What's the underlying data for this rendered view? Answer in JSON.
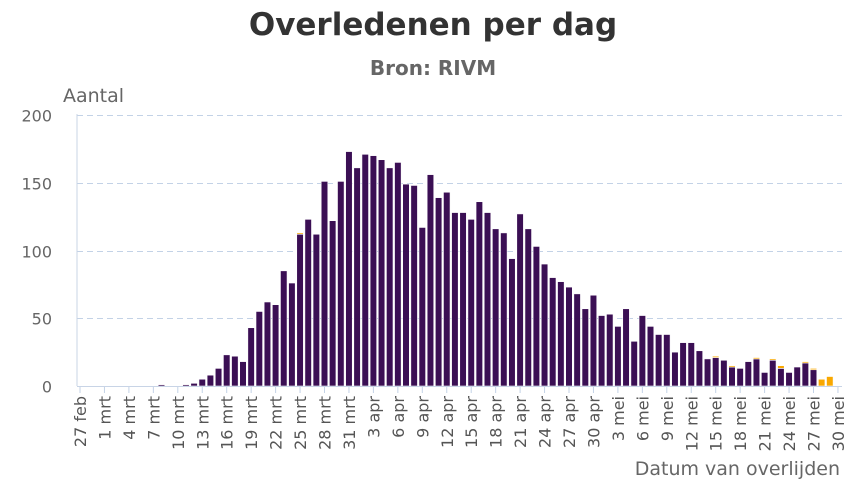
{
  "chart_data": {
    "type": "bar",
    "stacked": true,
    "title": "Overledenen per dag",
    "subtitle": "Bron: RIVM",
    "ylabel": "Aantal",
    "xlabel": "Datum van overlijden",
    "ylim": [
      0,
      200
    ],
    "yticks": [
      0,
      50,
      100,
      150,
      200
    ],
    "grid": true,
    "legend": "none",
    "xticks": [
      "27 feb",
      "1 mrt",
      "4 mrt",
      "7 mrt",
      "10 mrt",
      "13 mrt",
      "16 mrt",
      "19 mrt",
      "22 mrt",
      "25 mrt",
      "28 mrt",
      "31 mrt",
      "3 apr",
      "6 apr",
      "9 apr",
      "12 apr",
      "15 apr",
      "18 apr",
      "21 apr",
      "24 apr",
      "27 apr",
      "30 apr",
      "3 mei",
      "6 mei",
      "9 mei",
      "12 mei",
      "15 mei",
      "18 mei",
      "21 mei",
      "24 mei",
      "27 mei",
      "30 mei"
    ],
    "categories": [
      "27 feb",
      "28 feb",
      "29 feb",
      "1 mrt",
      "2 mrt",
      "3 mrt",
      "4 mrt",
      "5 mrt",
      "6 mrt",
      "7 mrt",
      "8 mrt",
      "9 mrt",
      "10 mrt",
      "11 mrt",
      "12 mrt",
      "13 mrt",
      "14 mrt",
      "15 mrt",
      "16 mrt",
      "17 mrt",
      "18 mrt",
      "19 mrt",
      "20 mrt",
      "21 mrt",
      "22 mrt",
      "23 mrt",
      "24 mrt",
      "25 mrt",
      "26 mrt",
      "27 mrt",
      "28 mrt",
      "29 mrt",
      "30 mrt",
      "31 mrt",
      "1 apr",
      "2 apr",
      "3 apr",
      "4 apr",
      "5 apr",
      "6 apr",
      "7 apr",
      "8 apr",
      "9 apr",
      "10 apr",
      "11 apr",
      "12 apr",
      "13 apr",
      "14 apr",
      "15 apr",
      "16 apr",
      "17 apr",
      "18 apr",
      "19 apr",
      "20 apr",
      "21 apr",
      "22 apr",
      "23 apr",
      "24 apr",
      "25 apr",
      "26 apr",
      "27 apr",
      "28 apr",
      "29 apr",
      "30 apr",
      "1 mei",
      "2 mei",
      "3 mei",
      "4 mei",
      "5 mei",
      "6 mei",
      "7 mei",
      "8 mei",
      "9 mei",
      "10 mei",
      "11 mei",
      "12 mei",
      "13 mei",
      "14 mei",
      "15 mei",
      "16 mei",
      "17 mei",
      "18 mei",
      "19 mei",
      "20 mei",
      "21 mei",
      "22 mei",
      "23 mei",
      "24 mei",
      "25 mei",
      "26 mei",
      "27 mei",
      "28 mei",
      "29 mei"
    ],
    "series": [
      {
        "color": "#3b0f54",
        "values": [
          0,
          0,
          0,
          0,
          0,
          0,
          0,
          0,
          0,
          0,
          1,
          0,
          0,
          1,
          2,
          5,
          8,
          13,
          23,
          22,
          18,
          43,
          55,
          62,
          60,
          85,
          76,
          112,
          123,
          112,
          151,
          122,
          151,
          173,
          161,
          171,
          170,
          167,
          161,
          165,
          149,
          148,
          117,
          156,
          139,
          143,
          128,
          128,
          123,
          136,
          128,
          116,
          113,
          94,
          127,
          116,
          103,
          90,
          80,
          77,
          73,
          68,
          57,
          67,
          52,
          53,
          44,
          57,
          33,
          52,
          44,
          38,
          38,
          25,
          32,
          32,
          26,
          20,
          21,
          19,
          14,
          13,
          18,
          20,
          10,
          19,
          13,
          10,
          14,
          17,
          12,
          0,
          0
        ]
      },
      {
        "color": "#f9a800",
        "values": [
          0,
          0,
          0,
          0,
          0,
          0,
          0,
          0,
          0,
          0,
          0,
          0,
          0,
          0,
          0,
          0,
          0,
          0,
          0,
          0,
          0,
          0,
          0,
          0,
          0,
          0,
          0,
          1,
          0,
          0,
          0,
          0,
          0,
          0,
          0,
          0,
          0,
          0,
          0,
          0,
          0,
          0,
          0,
          0,
          0,
          0,
          0,
          0,
          0,
          0,
          0,
          0,
          0,
          0,
          0,
          0,
          0,
          0,
          0,
          0,
          0,
          0,
          0,
          0,
          0,
          0,
          0,
          0,
          0,
          0,
          0,
          0,
          0,
          0,
          0,
          0,
          0,
          0,
          1,
          0,
          1,
          0,
          0,
          1,
          0,
          1,
          2,
          0,
          0,
          1,
          1,
          5,
          7
        ]
      }
    ]
  }
}
